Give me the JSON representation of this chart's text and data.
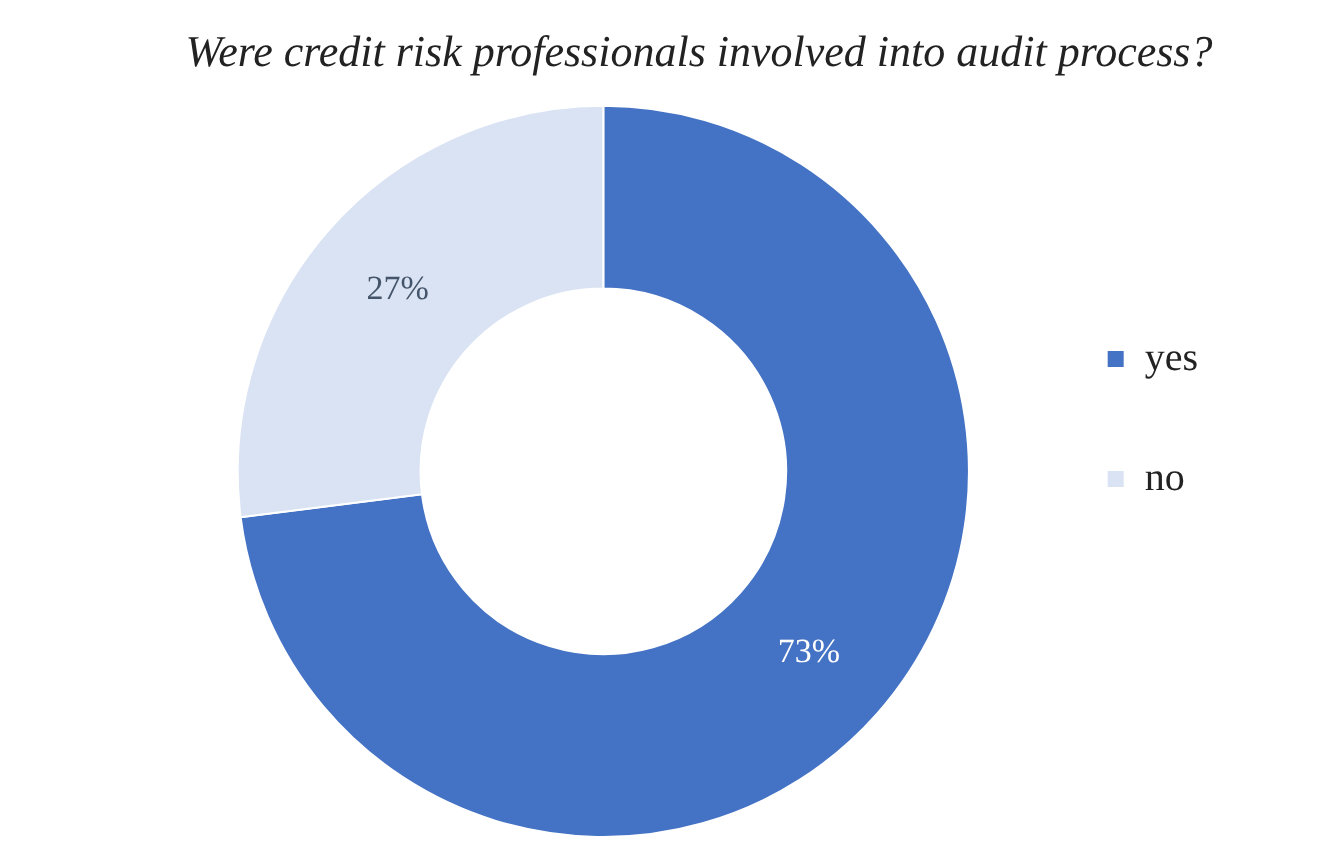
{
  "chart_data": {
    "type": "donut",
    "title": "Were credit risk professionals involved into audit process?",
    "categories": [
      "yes",
      "no"
    ],
    "values": [
      73,
      27
    ],
    "colors": [
      "#4472c4",
      "#dae3f3"
    ],
    "value_labels": [
      "73%",
      "27%"
    ],
    "legend": "right"
  }
}
